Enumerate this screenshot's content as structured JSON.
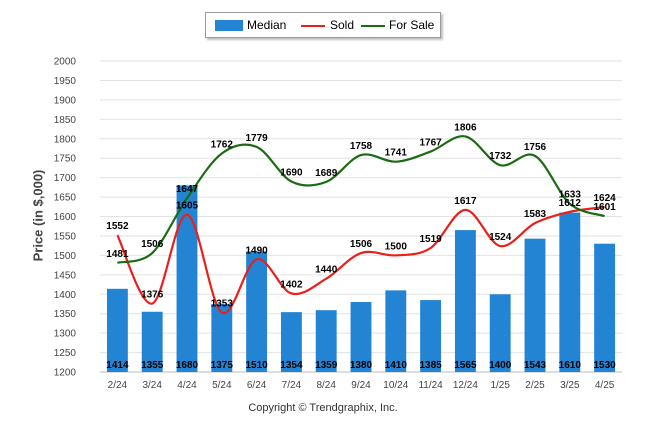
{
  "legend": {
    "median_label": "Median",
    "sold_label": "Sold",
    "forsale_label": "For Sale"
  },
  "footer": {
    "copyright": "Copyright © Trendgraphix, Inc."
  },
  "colors": {
    "bar": "#2384d3",
    "sold": "#e8201b",
    "forsale": "#1a6b12"
  },
  "chart_data": {
    "type": "bar",
    "ylabel": "Price (in $,000)",
    "ylim": [
      1200,
      2000
    ],
    "yticks": [
      1200,
      1250,
      1300,
      1350,
      1400,
      1450,
      1500,
      1550,
      1600,
      1650,
      1700,
      1750,
      1800,
      1850,
      1900,
      1950,
      2000
    ],
    "categories": [
      "2/24",
      "3/24",
      "4/24",
      "5/24",
      "6/24",
      "7/24",
      "8/24",
      "9/24",
      "10/24",
      "11/24",
      "12/24",
      "1/25",
      "2/25",
      "3/25",
      "4/25"
    ],
    "grid": true,
    "legend_position": "top",
    "series": [
      {
        "name": "Median",
        "type": "bar",
        "values": [
          1414,
          1355,
          1680,
          1375,
          1510,
          1354,
          1359,
          1380,
          1410,
          1385,
          1565,
          1400,
          1543,
          1610,
          1530
        ]
      },
      {
        "name": "Sold",
        "type": "line",
        "values": [
          1552,
          1376,
          1605,
          1353,
          1490,
          1402,
          1440,
          1506,
          1500,
          1519,
          1617,
          1524,
          1583,
          1612,
          1624
        ]
      },
      {
        "name": "For Sale",
        "type": "line",
        "values": [
          1481,
          1506,
          1647,
          1762,
          1779,
          1690,
          1689,
          1758,
          1741,
          1767,
          1806,
          1732,
          1756,
          1633,
          1601
        ]
      }
    ]
  }
}
